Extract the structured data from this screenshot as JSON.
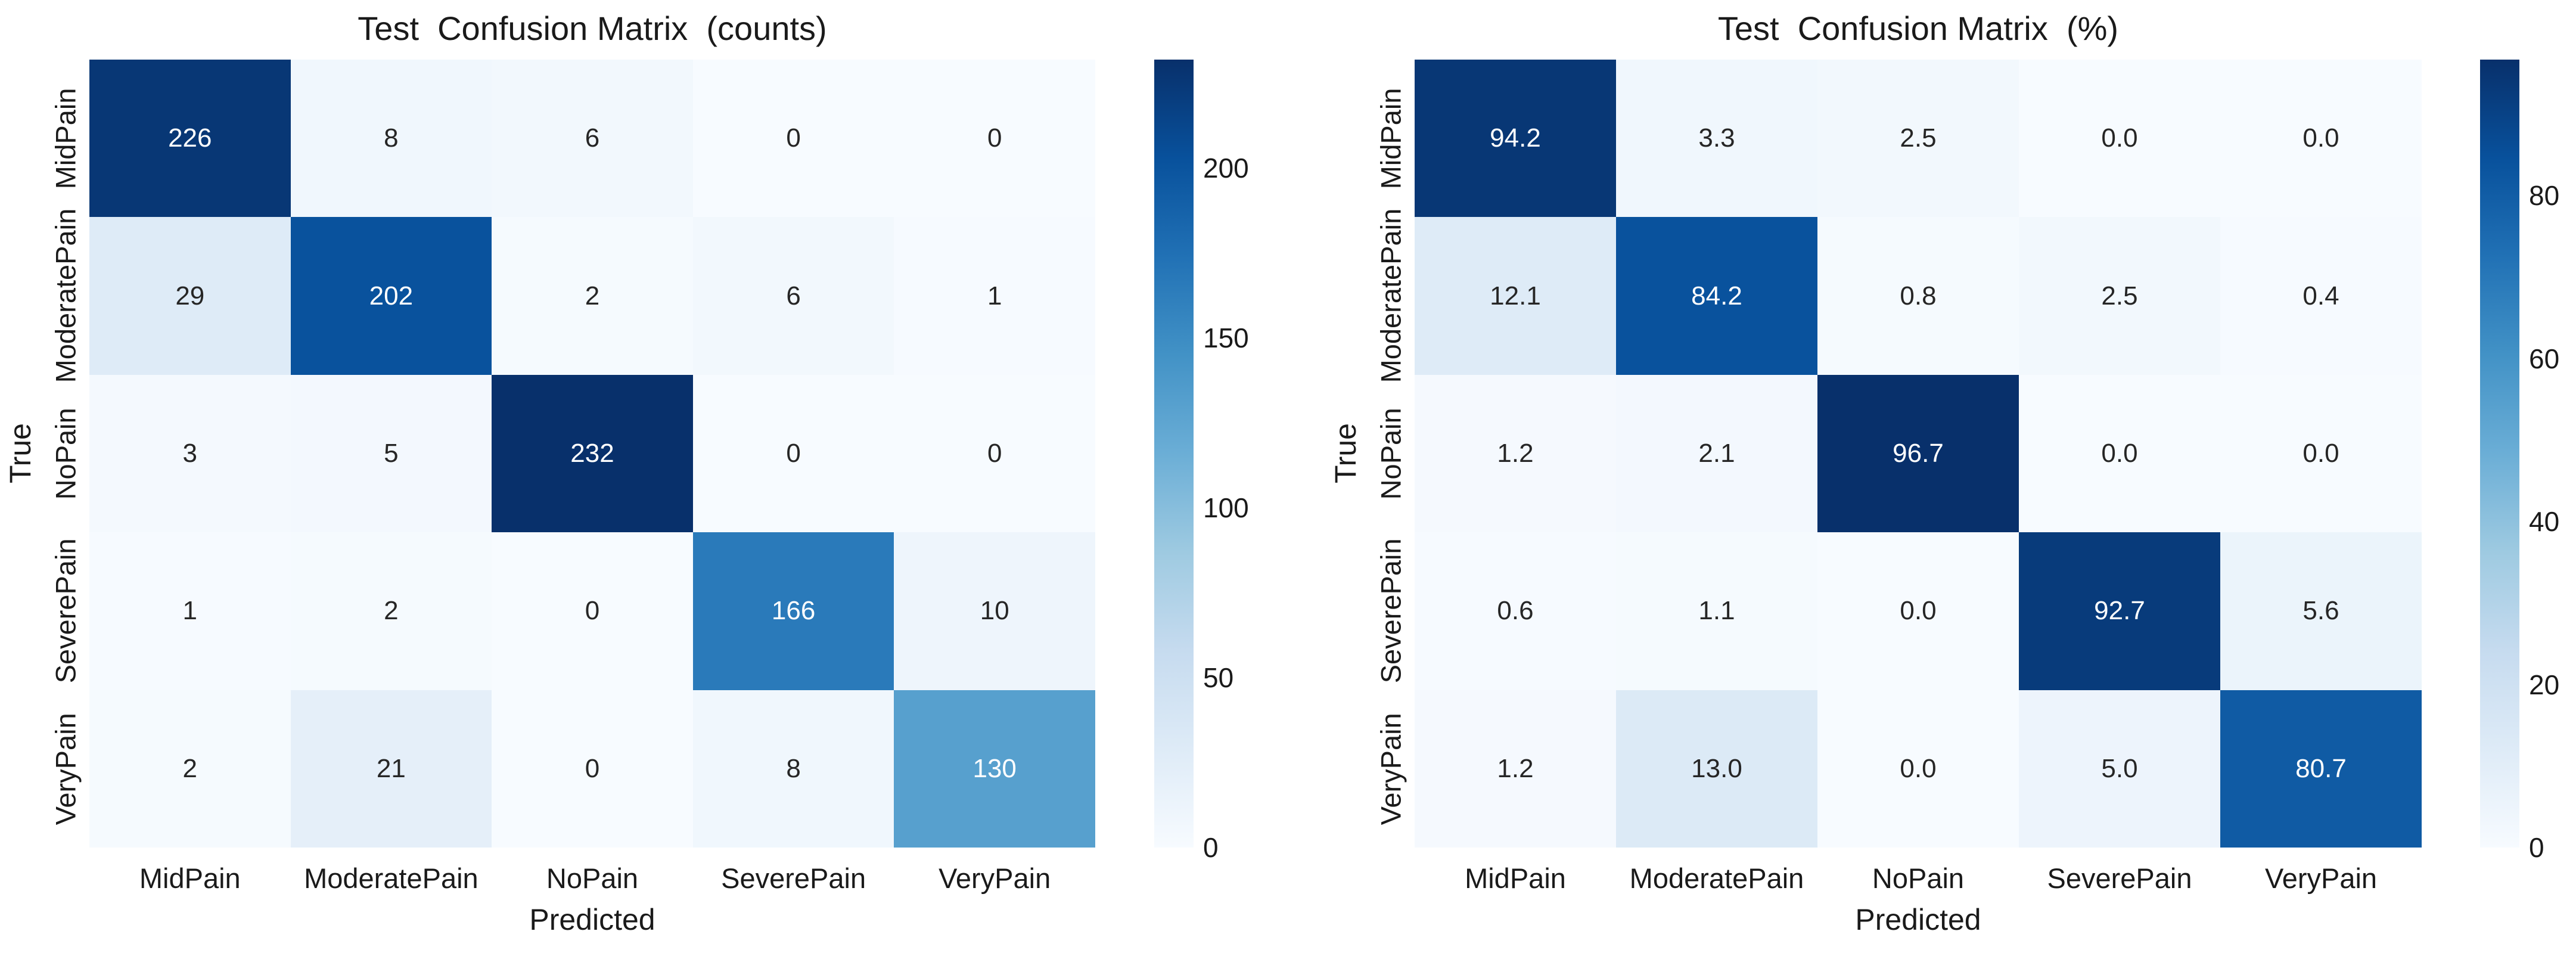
{
  "figure": {
    "background": "#ffffff"
  },
  "style": {
    "colormap_name": "Blues",
    "colormap_stops": [
      "#f7fbff",
      "#deebf7",
      "#c6dbef",
      "#9ecae1",
      "#6baed6",
      "#4292c6",
      "#2171b5",
      "#08519c",
      "#08306b"
    ],
    "annotation_color_dark": "#262626",
    "annotation_color_light": "#ffffff",
    "tick_label_color": "#1a1a1a"
  },
  "chart_data": [
    {
      "type": "heatmap",
      "title": "Test  Confusion Matrix  (counts)",
      "xlabel": "Predicted",
      "ylabel": "True",
      "categories": [
        "MidPain",
        "ModeratePain",
        "NoPain",
        "SeverePain",
        "VeryPain"
      ],
      "matrix": [
        [
          226,
          8,
          6,
          0,
          0
        ],
        [
          29,
          202,
          2,
          6,
          1
        ],
        [
          3,
          5,
          232,
          0,
          0
        ],
        [
          1,
          2,
          0,
          166,
          10
        ],
        [
          2,
          21,
          0,
          8,
          130
        ]
      ],
      "value_format": "int",
      "vmin": 0,
      "vmax": 232,
      "grid": false,
      "colorbar": {
        "position": "right",
        "ticks": [
          0,
          50,
          100,
          150,
          200
        ]
      }
    },
    {
      "type": "heatmap",
      "title": "Test  Confusion Matrix  (%)",
      "xlabel": "Predicted",
      "ylabel": "True",
      "categories": [
        "MidPain",
        "ModeratePain",
        "NoPain",
        "SeverePain",
        "VeryPain"
      ],
      "matrix": [
        [
          94.2,
          3.3,
          2.5,
          0.0,
          0.0
        ],
        [
          12.1,
          84.2,
          0.8,
          2.5,
          0.4
        ],
        [
          1.2,
          2.1,
          96.7,
          0.0,
          0.0
        ],
        [
          0.6,
          1.1,
          0.0,
          92.7,
          5.6
        ],
        [
          1.2,
          13.0,
          0.0,
          5.0,
          80.7
        ]
      ],
      "value_format": "1dp",
      "vmin": 0,
      "vmax": 96.7,
      "grid": false,
      "colorbar": {
        "position": "right",
        "ticks": [
          0,
          20,
          40,
          60,
          80
        ]
      }
    }
  ]
}
